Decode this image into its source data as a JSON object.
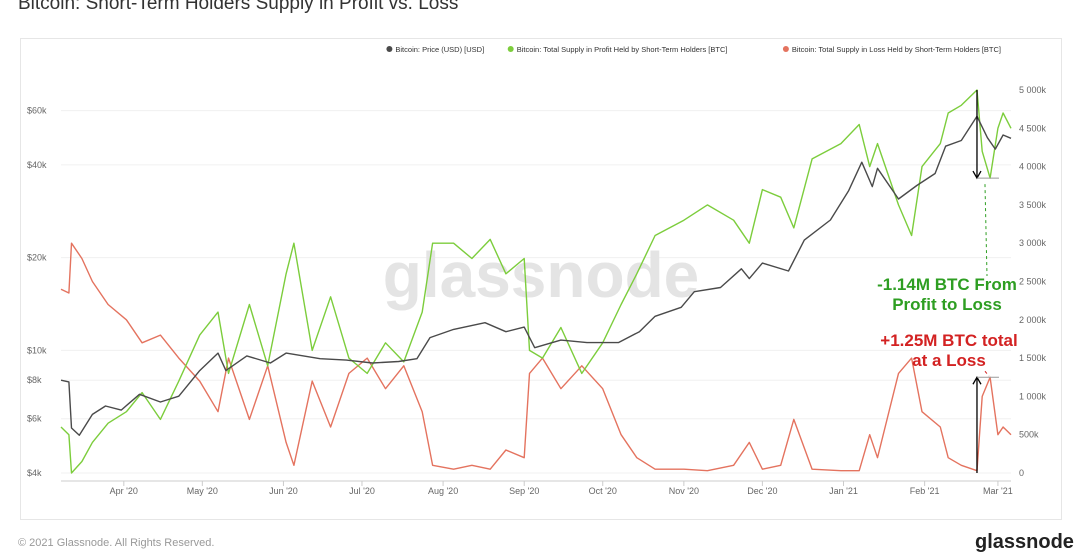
{
  "header": {
    "title": "Bitcoin: Short-Term Holders Supply in Profit vs. Loss"
  },
  "footer": {
    "copyright": "© 2021 Glassnode. All Rights Reserved.",
    "brand": "glassnode"
  },
  "watermark": "glassnode",
  "colors": {
    "price": "#4a4a4a",
    "profit": "#7ccd3c",
    "loss": "#e4735f",
    "annotation_green": "#2e9e22",
    "annotation_red": "#d32222"
  },
  "chart_data": {
    "type": "line",
    "title": "Bitcoin: Short-Term Holders Supply in Profit vs. Loss",
    "legend_position": "top-right",
    "grid": true,
    "x_range": [
      "2020-03-08",
      "2021-03-06"
    ],
    "x_ticks": [
      {
        "date": "2020-04-01",
        "label": "Apr '20"
      },
      {
        "date": "2020-05-01",
        "label": "May '20"
      },
      {
        "date": "2020-06-01",
        "label": "Jun '20"
      },
      {
        "date": "2020-07-01",
        "label": "Jul '20"
      },
      {
        "date": "2020-08-01",
        "label": "Aug '20"
      },
      {
        "date": "2020-09-01",
        "label": "Sep '20"
      },
      {
        "date": "2020-10-01",
        "label": "Oct '20"
      },
      {
        "date": "2020-11-01",
        "label": "Nov '20"
      },
      {
        "date": "2020-12-01",
        "label": "Dec '20"
      },
      {
        "date": "2021-01-01",
        "label": "Jan '21"
      },
      {
        "date": "2021-02-01",
        "label": "Feb '21"
      },
      {
        "date": "2021-03-01",
        "label": "Mar '21"
      }
    ],
    "y_left": {
      "scale": "log",
      "range": [
        4000,
        70000
      ],
      "ticks": [
        {
          "value": 4000,
          "label": "$4k"
        },
        {
          "value": 6000,
          "label": "$6k"
        },
        {
          "value": 8000,
          "label": "$8k"
        },
        {
          "value": 10000,
          "label": "$10k"
        },
        {
          "value": 20000,
          "label": "$20k"
        },
        {
          "value": 40000,
          "label": "$40k"
        },
        {
          "value": 60000,
          "label": "$60k"
        }
      ]
    },
    "y_right": {
      "scale": "linear",
      "range": [
        0,
        5000000
      ],
      "ticks": [
        {
          "value": 0,
          "label": "0"
        },
        {
          "value": 500000,
          "label": "500k"
        },
        {
          "value": 1000000,
          "label": "1 000k"
        },
        {
          "value": 1500000,
          "label": "1 500k"
        },
        {
          "value": 2000000,
          "label": "2 000k"
        },
        {
          "value": 2500000,
          "label": "2 500k"
        },
        {
          "value": 3000000,
          "label": "3 000k"
        },
        {
          "value": 3500000,
          "label": "3 500k"
        },
        {
          "value": 4000000,
          "label": "4 000k"
        },
        {
          "value": 4500000,
          "label": "4 500k"
        },
        {
          "value": 5000000,
          "label": "5 000k"
        }
      ]
    },
    "series": [
      {
        "name": "Bitcoin: Price (USD) [USD]",
        "axis": "left",
        "color": "#4a4a4a",
        "points": [
          [
            "2020-03-08",
            8000
          ],
          [
            "2020-03-11",
            7900
          ],
          [
            "2020-03-12",
            5600
          ],
          [
            "2020-03-15",
            5300
          ],
          [
            "2020-03-20",
            6200
          ],
          [
            "2020-03-25",
            6600
          ],
          [
            "2020-03-31",
            6400
          ],
          [
            "2020-04-07",
            7200
          ],
          [
            "2020-04-15",
            6800
          ],
          [
            "2020-04-22",
            7100
          ],
          [
            "2020-04-30",
            8600
          ],
          [
            "2020-05-07",
            9800
          ],
          [
            "2020-05-10",
            8600
          ],
          [
            "2020-05-18",
            9600
          ],
          [
            "2020-05-27",
            9100
          ],
          [
            "2020-06-02",
            9800
          ],
          [
            "2020-06-15",
            9400
          ],
          [
            "2020-06-25",
            9300
          ],
          [
            "2020-07-05",
            9100
          ],
          [
            "2020-07-15",
            9200
          ],
          [
            "2020-07-22",
            9400
          ],
          [
            "2020-07-27",
            11000
          ],
          [
            "2020-08-05",
            11700
          ],
          [
            "2020-08-17",
            12300
          ],
          [
            "2020-08-25",
            11500
          ],
          [
            "2020-09-01",
            11900
          ],
          [
            "2020-09-05",
            10200
          ],
          [
            "2020-09-15",
            10800
          ],
          [
            "2020-09-25",
            10600
          ],
          [
            "2020-10-07",
            10600
          ],
          [
            "2020-10-15",
            11500
          ],
          [
            "2020-10-21",
            12900
          ],
          [
            "2020-10-31",
            13800
          ],
          [
            "2020-11-05",
            15500
          ],
          [
            "2020-11-15",
            16000
          ],
          [
            "2020-11-23",
            18400
          ],
          [
            "2020-11-26",
            17100
          ],
          [
            "2020-12-01",
            19200
          ],
          [
            "2020-12-11",
            18100
          ],
          [
            "2020-12-17",
            22800
          ],
          [
            "2020-12-27",
            26500
          ],
          [
            "2021-01-03",
            33000
          ],
          [
            "2021-01-08",
            40800
          ],
          [
            "2021-01-12",
            34000
          ],
          [
            "2021-01-14",
            39000
          ],
          [
            "2021-01-22",
            31000
          ],
          [
            "2021-01-29",
            34300
          ],
          [
            "2021-02-05",
            37500
          ],
          [
            "2021-02-09",
            46000
          ],
          [
            "2021-02-15",
            48000
          ],
          [
            "2021-02-21",
            57500
          ],
          [
            "2021-02-25",
            49000
          ],
          [
            "2021-02-28",
            45000
          ],
          [
            "2021-03-03",
            50000
          ],
          [
            "2021-03-06",
            48800
          ]
        ]
      },
      {
        "name": "Bitcoin: Total Supply in Profit Held by Short-Term Holders [BTC]",
        "axis": "right",
        "color": "#7ccd3c",
        "points": [
          [
            "2020-03-08",
            600000
          ],
          [
            "2020-03-11",
            500000
          ],
          [
            "2020-03-12",
            0
          ],
          [
            "2020-03-16",
            150000
          ],
          [
            "2020-03-20",
            400000
          ],
          [
            "2020-03-26",
            650000
          ],
          [
            "2020-04-02",
            800000
          ],
          [
            "2020-04-08",
            1050000
          ],
          [
            "2020-04-15",
            700000
          ],
          [
            "2020-04-22",
            1200000
          ],
          [
            "2020-04-30",
            1800000
          ],
          [
            "2020-05-07",
            2100000
          ],
          [
            "2020-05-11",
            1300000
          ],
          [
            "2020-05-19",
            2200000
          ],
          [
            "2020-05-26",
            1400000
          ],
          [
            "2020-06-02",
            2600000
          ],
          [
            "2020-06-05",
            3000000
          ],
          [
            "2020-06-12",
            1600000
          ],
          [
            "2020-06-19",
            2300000
          ],
          [
            "2020-06-26",
            1500000
          ],
          [
            "2020-07-03",
            1300000
          ],
          [
            "2020-07-10",
            1700000
          ],
          [
            "2020-07-17",
            1450000
          ],
          [
            "2020-07-24",
            2100000
          ],
          [
            "2020-07-28",
            3000000
          ],
          [
            "2020-08-05",
            3000000
          ],
          [
            "2020-08-12",
            2800000
          ],
          [
            "2020-08-19",
            3050000
          ],
          [
            "2020-08-25",
            2600000
          ],
          [
            "2020-09-01",
            2800000
          ],
          [
            "2020-09-03",
            1600000
          ],
          [
            "2020-09-08",
            1500000
          ],
          [
            "2020-09-15",
            1900000
          ],
          [
            "2020-09-23",
            1300000
          ],
          [
            "2020-10-01",
            1700000
          ],
          [
            "2020-10-08",
            2200000
          ],
          [
            "2020-10-14",
            2600000
          ],
          [
            "2020-10-21",
            3100000
          ],
          [
            "2020-11-01",
            3300000
          ],
          [
            "2020-11-10",
            3500000
          ],
          [
            "2020-11-20",
            3300000
          ],
          [
            "2020-11-26",
            3000000
          ],
          [
            "2020-12-01",
            3700000
          ],
          [
            "2020-12-08",
            3600000
          ],
          [
            "2020-12-13",
            3200000
          ],
          [
            "2020-12-20",
            4100000
          ],
          [
            "2020-12-31",
            4300000
          ],
          [
            "2021-01-07",
            4550000
          ],
          [
            "2021-01-11",
            4000000
          ],
          [
            "2021-01-14",
            4300000
          ],
          [
            "2021-01-22",
            3500000
          ],
          [
            "2021-01-27",
            3100000
          ],
          [
            "2021-01-31",
            4000000
          ],
          [
            "2021-02-07",
            4300000
          ],
          [
            "2021-02-10",
            4700000
          ],
          [
            "2021-02-15",
            4800000
          ],
          [
            "2021-02-21",
            5000000
          ],
          [
            "2021-02-23",
            4200000
          ],
          [
            "2021-02-26",
            3850000
          ],
          [
            "2021-03-01",
            4500000
          ],
          [
            "2021-03-03",
            4700000
          ],
          [
            "2021-03-06",
            4500000
          ]
        ]
      },
      {
        "name": "Bitcoin: Total Supply in Loss Held by Short-Term Holders [BTC]",
        "axis": "right",
        "color": "#e4735f",
        "points": [
          [
            "2020-03-08",
            2400000
          ],
          [
            "2020-03-11",
            2350000
          ],
          [
            "2020-03-12",
            3000000
          ],
          [
            "2020-03-16",
            2800000
          ],
          [
            "2020-03-20",
            2500000
          ],
          [
            "2020-03-26",
            2200000
          ],
          [
            "2020-04-02",
            2000000
          ],
          [
            "2020-04-08",
            1700000
          ],
          [
            "2020-04-15",
            1800000
          ],
          [
            "2020-04-22",
            1500000
          ],
          [
            "2020-04-30",
            1200000
          ],
          [
            "2020-05-07",
            800000
          ],
          [
            "2020-05-11",
            1500000
          ],
          [
            "2020-05-19",
            700000
          ],
          [
            "2020-05-26",
            1400000
          ],
          [
            "2020-06-02",
            400000
          ],
          [
            "2020-06-05",
            100000
          ],
          [
            "2020-06-12",
            1200000
          ],
          [
            "2020-06-19",
            600000
          ],
          [
            "2020-06-26",
            1300000
          ],
          [
            "2020-07-03",
            1500000
          ],
          [
            "2020-07-10",
            1100000
          ],
          [
            "2020-07-17",
            1400000
          ],
          [
            "2020-07-24",
            800000
          ],
          [
            "2020-07-28",
            100000
          ],
          [
            "2020-08-05",
            50000
          ],
          [
            "2020-08-12",
            100000
          ],
          [
            "2020-08-19",
            50000
          ],
          [
            "2020-08-25",
            300000
          ],
          [
            "2020-09-01",
            200000
          ],
          [
            "2020-09-03",
            1300000
          ],
          [
            "2020-09-08",
            1500000
          ],
          [
            "2020-09-15",
            1100000
          ],
          [
            "2020-09-23",
            1400000
          ],
          [
            "2020-10-01",
            1100000
          ],
          [
            "2020-10-08",
            500000
          ],
          [
            "2020-10-14",
            200000
          ],
          [
            "2020-10-21",
            50000
          ],
          [
            "2020-11-01",
            50000
          ],
          [
            "2020-11-10",
            30000
          ],
          [
            "2020-11-20",
            100000
          ],
          [
            "2020-11-26",
            400000
          ],
          [
            "2020-12-01",
            50000
          ],
          [
            "2020-12-08",
            100000
          ],
          [
            "2020-12-13",
            700000
          ],
          [
            "2020-12-20",
            50000
          ],
          [
            "2020-12-31",
            30000
          ],
          [
            "2021-01-07",
            30000
          ],
          [
            "2021-01-11",
            500000
          ],
          [
            "2021-01-14",
            200000
          ],
          [
            "2021-01-22",
            1300000
          ],
          [
            "2021-01-27",
            1500000
          ],
          [
            "2021-01-31",
            800000
          ],
          [
            "2021-02-07",
            600000
          ],
          [
            "2021-02-10",
            200000
          ],
          [
            "2021-02-15",
            100000
          ],
          [
            "2021-02-21",
            30000
          ],
          [
            "2021-02-23",
            1000000
          ],
          [
            "2021-02-26",
            1250000
          ],
          [
            "2021-03-01",
            500000
          ],
          [
            "2021-03-03",
            600000
          ],
          [
            "2021-03-06",
            500000
          ]
        ]
      }
    ],
    "annotations": [
      {
        "text_lines": [
          "-1.14M BTC From",
          "Profit to Loss"
        ],
        "color": "#2e9e22",
        "date": "2021-02-21",
        "from": 5000000,
        "to": 3850000
      },
      {
        "text_lines": [
          "+1.25M BTC total",
          "at a Loss"
        ],
        "color": "#d32222",
        "date": "2021-02-21",
        "from": 0,
        "to": 1250000
      }
    ]
  }
}
